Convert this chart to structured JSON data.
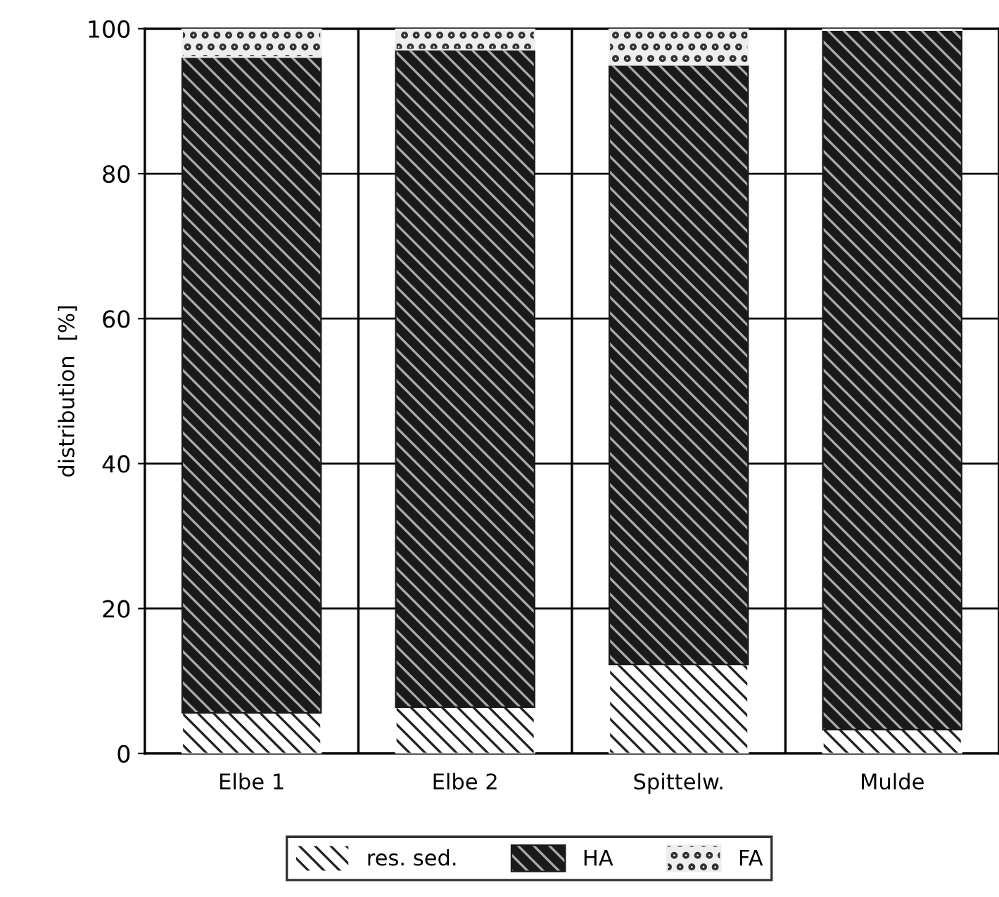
{
  "chart_data": {
    "type": "bar",
    "stacked": true,
    "ylabel": "distribution  [%]",
    "categories": [
      "Elbe 1",
      "Elbe 2",
      "Spittelw.",
      "Mulde"
    ],
    "series": [
      {
        "name": "res. sed.",
        "color": "#ffffff",
        "values": [
          5.6,
          6.4,
          12.3,
          3.3
        ]
      },
      {
        "name": "HA",
        "color": "#1a1a1a",
        "values": [
          90.5,
          90.7,
          82.7,
          96.5
        ]
      },
      {
        "name": "FA",
        "color": "#eeeeee",
        "values": [
          3.9,
          2.9,
          5.0,
          0.2
        ]
      }
    ],
    "ylim": [
      0,
      100
    ],
    "yticks": [
      0,
      20,
      40,
      60,
      80,
      100
    ],
    "grid": true,
    "legend": "bottom"
  }
}
